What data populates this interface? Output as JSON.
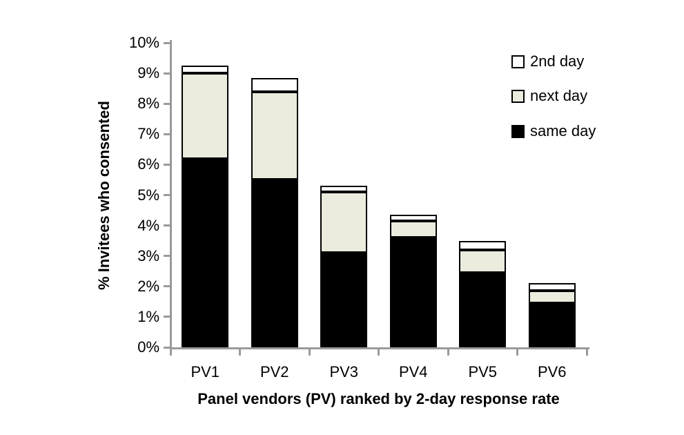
{
  "chart_data": {
    "type": "bar",
    "stacked": true,
    "title": "",
    "categories": [
      "PV1",
      "PV2",
      "PV3",
      "PV4",
      "PV5",
      "PV6"
    ],
    "series": [
      {
        "name": "same day",
        "color": "#000000",
        "values": [
          6.2,
          5.5,
          3.1,
          3.6,
          2.45,
          1.45
        ]
      },
      {
        "name": "next day",
        "color": "#EBEBDE",
        "values": [
          2.8,
          2.9,
          2.0,
          0.55,
          0.75,
          0.4
        ]
      },
      {
        "name": "2nd day",
        "color": "#FFFFFF",
        "values": [
          0.25,
          0.45,
          0.2,
          0.2,
          0.3,
          0.25
        ]
      }
    ],
    "stack_totals": [
      9.25,
      8.85,
      5.3,
      4.35,
      3.5,
      2.1
    ],
    "xlabel": "Panel vendors (PV) ranked by 2-day response rate",
    "ylabel": "% Invitees who consented",
    "ylim": [
      0,
      10
    ],
    "ytick_step": 1,
    "ytick_labels": [
      "0%",
      "1%",
      "2%",
      "3%",
      "4%",
      "5%",
      "6%",
      "7%",
      "8%",
      "9%",
      "10%"
    ],
    "grid": false,
    "legend_position": "top-right",
    "legend_entries": [
      {
        "label": "2nd day",
        "fill": "#FFFFFF"
      },
      {
        "label": "next day",
        "fill": "#EBEBDE"
      },
      {
        "label": "same day",
        "fill": "#000000"
      }
    ]
  },
  "colors": {
    "axis": "#9A9A9A",
    "bar_border": "#000000",
    "background": "#FFFFFF"
  }
}
